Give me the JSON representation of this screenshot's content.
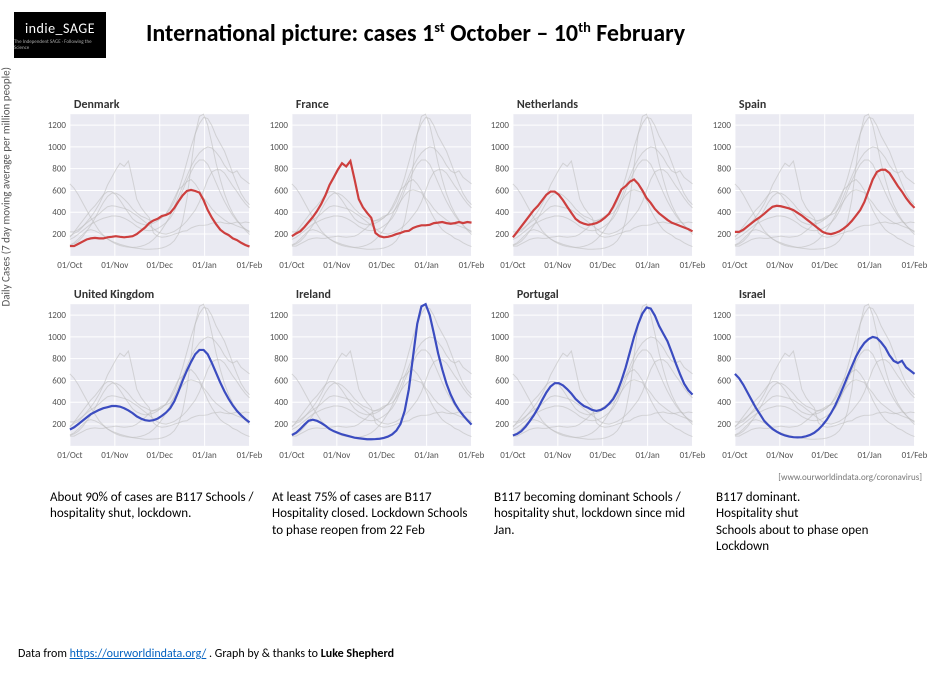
{
  "logo": {
    "main": "indie_SAGE",
    "sub": "The Independent SAGE · Following the Science"
  },
  "title_html": "International picture: cases 1<sup>st</sup> October – 10<sup>th</sup> February",
  "y_axis_label": "Daily Cases (7 day moving average per million people)",
  "source_link": "[www.ourworldindata.org/coronavirus]",
  "credit_prefix": "Data from ",
  "credit_url_text": "https://ourworldindata.org/",
  "credit_suffix": " . Graph by & thanks to ",
  "credit_author": "Luke Shepherd",
  "chart_meta": {
    "ylim": [
      0,
      1300
    ],
    "ytick_step": 200,
    "x_labels": [
      "01/Oct",
      "01/Nov",
      "01/Dec",
      "01/Jan",
      "01/Feb"
    ],
    "plot_bg": "#eaeaf2",
    "grid_color": "#ffffff",
    "ghost_color": "#bbbbbb",
    "tick_fontsize": 9,
    "title_fontsize": 12,
    "line_width": 2.2,
    "ghost_width": 1
  },
  "colors": {
    "red": "#cd3f3e",
    "blue": "#3b4cc0"
  },
  "annotations": [
    "About 90% of cases are B117 Schools / hospitality shut, lockdown.",
    "At least 75% of cases are B117 Hospitality closed. Lockdown Schools to phase reopen from 22 Feb",
    "B117 becoming dominant Schools / hospitality shut, lockdown since mid Jan.",
    "B117 dominant.\nHospitality shut\nSchools about to phase open Lockdown"
  ],
  "panels": [
    {
      "title": "Denmark",
      "color_key": "red",
      "series": [
        90,
        90,
        110,
        130,
        150,
        160,
        165,
        160,
        160,
        170,
        175,
        180,
        175,
        170,
        175,
        180,
        200,
        230,
        260,
        300,
        325,
        340,
        365,
        375,
        395,
        440,
        500,
        555,
        595,
        605,
        595,
        580,
        510,
        420,
        350,
        290,
        240,
        210,
        190,
        160,
        145,
        120,
        100,
        85
      ]
    },
    {
      "title": "France",
      "color_key": "red",
      "series": [
        180,
        205,
        225,
        265,
        310,
        355,
        410,
        475,
        555,
        650,
        720,
        790,
        850,
        820,
        870,
        700,
        520,
        445,
        395,
        350,
        210,
        180,
        170,
        175,
        185,
        200,
        210,
        225,
        230,
        255,
        270,
        280,
        280,
        285,
        300,
        305,
        310,
        300,
        295,
        300,
        310,
        300,
        310,
        305
      ]
    },
    {
      "title": "Netherlands",
      "color_key": "red",
      "series": [
        170,
        220,
        270,
        320,
        370,
        420,
        460,
        510,
        560,
        590,
        590,
        560,
        510,
        450,
        395,
        340,
        310,
        295,
        285,
        290,
        300,
        320,
        350,
        385,
        450,
        530,
        610,
        640,
        680,
        700,
        660,
        600,
        530,
        485,
        430,
        390,
        360,
        330,
        305,
        290,
        275,
        260,
        245,
        225
      ]
    },
    {
      "title": "Spain",
      "color_key": "red",
      "series": [
        220,
        220,
        240,
        270,
        300,
        330,
        355,
        385,
        420,
        450,
        460,
        455,
        445,
        435,
        420,
        395,
        370,
        340,
        310,
        280,
        250,
        220,
        205,
        200,
        210,
        225,
        250,
        280,
        320,
        370,
        420,
        495,
        600,
        700,
        770,
        790,
        790,
        760,
        700,
        640,
        590,
        530,
        480,
        440
      ]
    },
    {
      "title": "United Kingdom",
      "color_key": "blue",
      "series": [
        150,
        170,
        200,
        230,
        260,
        290,
        310,
        330,
        345,
        355,
        365,
        365,
        360,
        345,
        325,
        300,
        270,
        250,
        235,
        230,
        235,
        250,
        275,
        305,
        345,
        410,
        500,
        600,
        690,
        770,
        840,
        880,
        880,
        840,
        760,
        670,
        580,
        500,
        430,
        370,
        320,
        280,
        245,
        215
      ]
    },
    {
      "title": "Ireland",
      "color_key": "blue",
      "series": [
        100,
        120,
        155,
        195,
        230,
        240,
        230,
        210,
        185,
        155,
        135,
        120,
        105,
        95,
        85,
        75,
        70,
        65,
        60,
        60,
        62,
        65,
        72,
        85,
        105,
        140,
        200,
        320,
        520,
        820,
        1120,
        1280,
        1300,
        1200,
        1030,
        850,
        700,
        570,
        470,
        390,
        330,
        280,
        235,
        195
      ]
    },
    {
      "title": "Portugal",
      "color_key": "blue",
      "series": [
        95,
        110,
        135,
        175,
        225,
        280,
        345,
        420,
        490,
        545,
        575,
        575,
        555,
        520,
        480,
        430,
        395,
        365,
        350,
        330,
        320,
        330,
        350,
        385,
        430,
        500,
        600,
        720,
        860,
        1000,
        1120,
        1215,
        1270,
        1260,
        1195,
        1100,
        1030,
        960,
        860,
        755,
        660,
        570,
        510,
        470
      ]
    },
    {
      "title": "Israel",
      "color_key": "blue",
      "series": [
        660,
        620,
        560,
        490,
        420,
        350,
        290,
        230,
        190,
        155,
        130,
        110,
        95,
        85,
        80,
        78,
        80,
        88,
        100,
        120,
        150,
        190,
        240,
        300,
        370,
        455,
        545,
        640,
        730,
        820,
        890,
        945,
        980,
        1000,
        990,
        950,
        900,
        830,
        780,
        760,
        780,
        720,
        690,
        660
      ]
    }
  ],
  "ghost_indices_per_panel": "all_others"
}
